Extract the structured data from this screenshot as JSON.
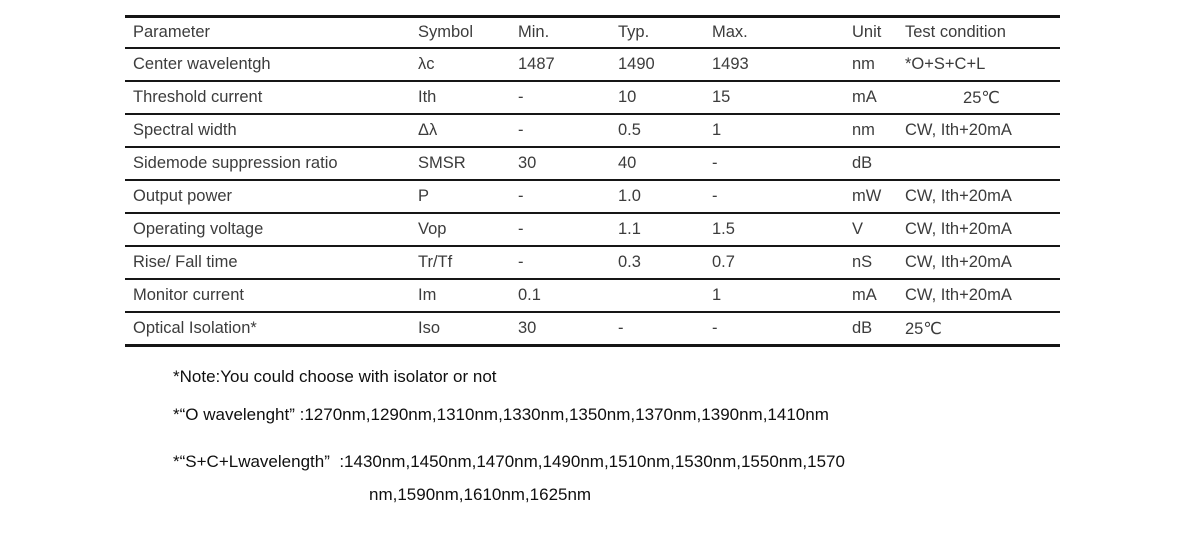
{
  "colors": {
    "table_text": "#3c3c3c",
    "table_border": "#161616",
    "note_text": "#0f0f0f",
    "background": "#ffffff"
  },
  "table": {
    "columns": [
      "Parameter",
      "Symbol",
      "Min.",
      "Typ.",
      "Max.",
      "Unit",
      "Test condition"
    ],
    "rows": [
      {
        "parameter": "Center wavelentgh",
        "symbol": "λc",
        "min": "1487",
        "typ": "1490",
        "max": "1493",
        "unit": "nm",
        "test": "*O+S+C+L"
      },
      {
        "parameter": "Threshold current",
        "symbol": "Ith",
        "min": "-",
        "typ": "10",
        "max": "15",
        "unit": "mA",
        "test": "25℃"
      },
      {
        "parameter": "Spectral width",
        "symbol": "Δλ",
        "min": "-",
        "typ": "0.5",
        "max": "1",
        "unit": "nm",
        "test": "CW, Ith+20mA"
      },
      {
        "parameter": "Sidemode suppression ratio",
        "symbol": "SMSR",
        "min": "30",
        "typ": "40",
        "max": "-",
        "unit": "dB",
        "test": ""
      },
      {
        "parameter": "Output power",
        "symbol": "P",
        "min": "-",
        "typ": "1.0",
        "max": "-",
        "unit": "mW",
        "test": "CW, Ith+20mA"
      },
      {
        "parameter": "Operating voltage",
        "symbol": "Vop",
        "min": "-",
        "typ": "1.1",
        "max": "1.5",
        "unit": "V",
        "test": "CW, Ith+20mA"
      },
      {
        "parameter": "Rise/ Fall time",
        "symbol": "Tr/Tf",
        "min": "-",
        "typ": "0.3",
        "max": "0.7",
        "unit": "nS",
        "test": "CW, Ith+20mA"
      },
      {
        "parameter": "Monitor current",
        "symbol": "Im",
        "min": "0.1",
        "typ": "",
        "max": "1",
        "unit": "mA",
        "test": "CW, Ith+20mA"
      },
      {
        "parameter": "Optical Isolation*",
        "symbol": "Iso",
        "min": "30",
        "typ": "-",
        "max": "-",
        "unit": "dB",
        "test": "25℃"
      }
    ]
  },
  "notes": [
    "*Note:You could choose with isolator or not",
    "*“O wavelenght” :1270nm,1290nm,1310nm,1330nm,1350nm,1370nm,1390nm,1410nm",
    "*“S+C+Lwavelength”  :1430nm,1450nm,1470nm,1490nm,1510nm,1530nm,1550nm,1570",
    "nm,1590nm,1610nm,1625nm"
  ]
}
